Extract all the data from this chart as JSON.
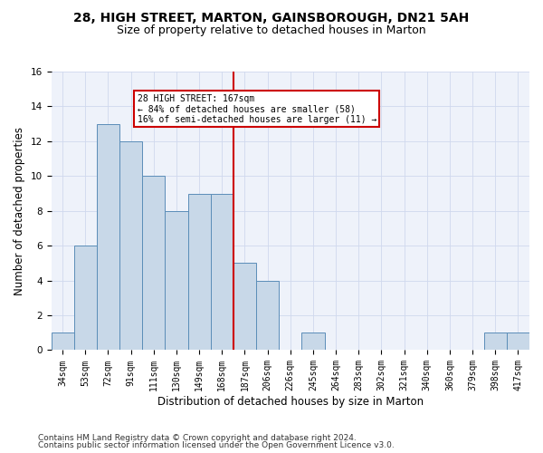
{
  "title1": "28, HIGH STREET, MARTON, GAINSBOROUGH, DN21 5AH",
  "title2": "Size of property relative to detached houses in Marton",
  "xlabel": "Distribution of detached houses by size in Marton",
  "ylabel": "Number of detached properties",
  "footer1": "Contains HM Land Registry data © Crown copyright and database right 2024.",
  "footer2": "Contains public sector information licensed under the Open Government Licence v3.0.",
  "bin_labels": [
    "34sqm",
    "53sqm",
    "72sqm",
    "91sqm",
    "111sqm",
    "130sqm",
    "149sqm",
    "168sqm",
    "187sqm",
    "206sqm",
    "226sqm",
    "245sqm",
    "264sqm",
    "283sqm",
    "302sqm",
    "321sqm",
    "340sqm",
    "360sqm",
    "379sqm",
    "398sqm",
    "417sqm"
  ],
  "values": [
    1,
    6,
    13,
    12,
    10,
    8,
    9,
    9,
    5,
    4,
    0,
    1,
    0,
    0,
    0,
    0,
    0,
    0,
    0,
    1,
    1
  ],
  "bar_color": "#c8d8e8",
  "bar_edge_color": "#5b8db8",
  "vline_index": 7,
  "vline_color": "#cc0000",
  "annotation_text": "28 HIGH STREET: 167sqm\n← 84% of detached houses are smaller (58)\n16% of semi-detached houses are larger (11) →",
  "annotation_box_color": "#ffffff",
  "annotation_box_edge": "#cc0000",
  "ylim": [
    0,
    16
  ],
  "yticks": [
    0,
    2,
    4,
    6,
    8,
    10,
    12,
    14,
    16
  ],
  "grid_color": "#d0d8ee",
  "background_color": "#eef2fa",
  "title1_fontsize": 10,
  "title2_fontsize": 9,
  "tick_fontsize": 7,
  "ylabel_fontsize": 8.5,
  "xlabel_fontsize": 8.5,
  "footer_fontsize": 6.5
}
